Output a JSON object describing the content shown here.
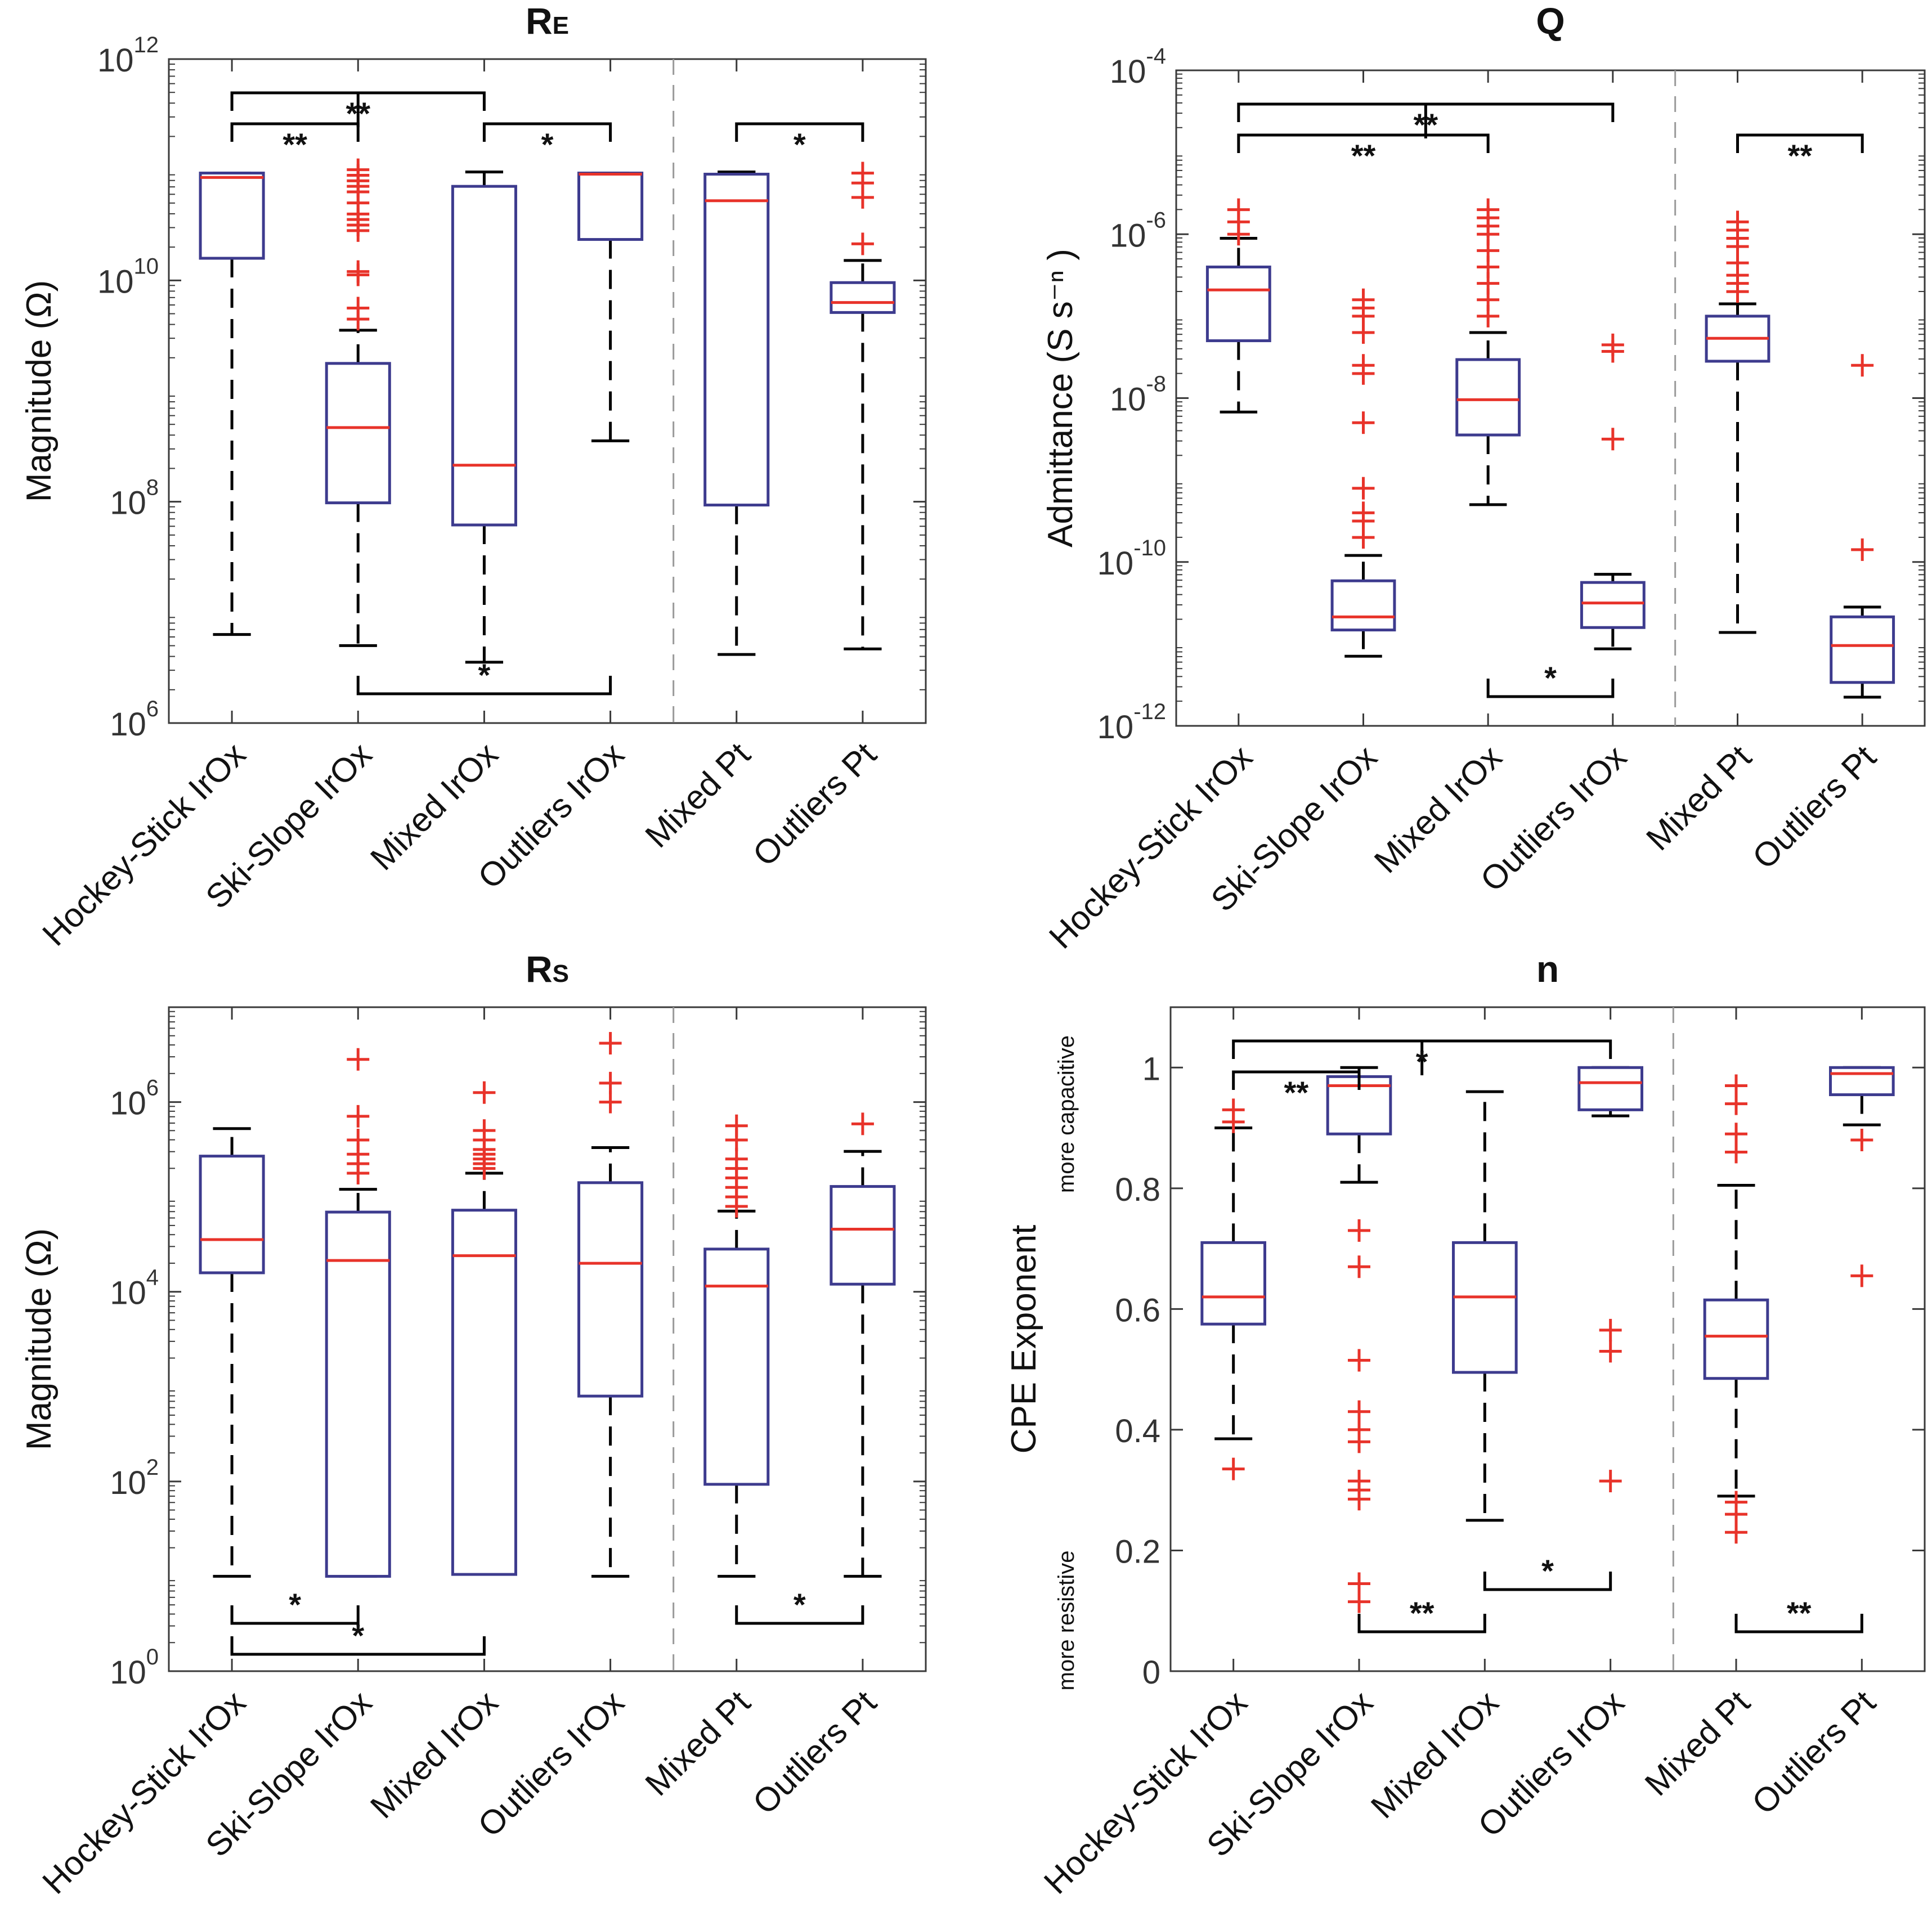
{
  "chart_data": [
    {
      "type": "box",
      "panel": "top-left",
      "title_main": "R",
      "title_sub": "E",
      "ylabel": "Magnitude (Ω)",
      "yscale": "log",
      "ylim_exp": [
        6,
        12
      ],
      "yticks": [
        {
          "base": "10",
          "exp": "6",
          "e": 6
        },
        {
          "base": "10",
          "exp": "8",
          "e": 8
        },
        {
          "base": "10",
          "exp": "10",
          "e": 10
        },
        {
          "base": "10",
          "exp": "12",
          "e": 12
        }
      ],
      "categories": [
        "Hockey-Stick IrOx",
        "Ski-Slope IrOx",
        "Mixed IrOx",
        "Outliers IrOx",
        "Mixed Pt",
        "Outliers Pt"
      ],
      "group_divider_after": 4,
      "boxes": [
        {
          "q1": 10.2,
          "median": 10.93,
          "q3": 10.97,
          "wlo": 6.8,
          "whi": 10.97,
          "outliers": []
        },
        {
          "q1": 7.99,
          "median": 8.67,
          "q3": 9.25,
          "wlo": 6.7,
          "whi": 9.55,
          "outliers": [
            9.65,
            9.75,
            10.05,
            10.08,
            10.45,
            10.5,
            10.55,
            10.6,
            10.7,
            10.8,
            10.85,
            10.9,
            10.95,
            11.0
          ]
        },
        {
          "q1": 7.79,
          "median": 8.33,
          "q3": 10.85,
          "wlo": 6.55,
          "whi": 10.98,
          "outliers": []
        },
        {
          "q1": 10.37,
          "median": 10.96,
          "q3": 10.97,
          "wlo": 8.55,
          "whi": 10.97,
          "outliers": []
        },
        {
          "q1": 7.97,
          "median": 10.72,
          "q3": 10.96,
          "wlo": 6.62,
          "whi": 10.98,
          "outliers": []
        },
        {
          "q1": 9.71,
          "median": 9.8,
          "q3": 9.98,
          "wlo": 6.67,
          "whi": 10.18,
          "outliers": [
            10.33,
            10.75,
            10.88,
            10.97
          ]
        }
      ],
      "significance": [
        {
          "i": 0,
          "j": 2,
          "label": "**",
          "position": "top",
          "level": 2
        },
        {
          "i": 0,
          "j": 1,
          "label": "**",
          "position": "top",
          "level": 1
        },
        {
          "i": 2,
          "j": 3,
          "label": "*",
          "position": "top",
          "level": 1
        },
        {
          "i": 4,
          "j": 5,
          "label": "*",
          "position": "top",
          "level": 1
        },
        {
          "i": 1,
          "j": 3,
          "label": "*",
          "position": "bottom",
          "level": 1
        }
      ]
    },
    {
      "type": "box",
      "panel": "top-right",
      "title_main": "Q",
      "title_sub": "",
      "ylabel": "Admittance (S s⁻ⁿ )",
      "yscale": "log",
      "ylim_exp": [
        -12,
        -4
      ],
      "yticks": [
        {
          "base": "10",
          "exp": "-12",
          "e": -12
        },
        {
          "base": "10",
          "exp": "-10",
          "e": -10
        },
        {
          "base": "10",
          "exp": "-8",
          "e": -8
        },
        {
          "base": "10",
          "exp": "-6",
          "e": -6
        },
        {
          "base": "10",
          "exp": "-4",
          "e": -4
        }
      ],
      "categories": [
        "Hockey-Stick IrOx",
        "Ski-Slope IrOx",
        "Mixed IrOx",
        "Outliers IrOx",
        "Mixed Pt",
        "Outliers Pt"
      ],
      "group_divider_after": 4,
      "boxes": [
        {
          "q1": -7.3,
          "median": -6.68,
          "q3": -6.4,
          "wlo": -8.17,
          "whi": -6.05,
          "outliers": [
            -6.0,
            -5.85,
            -5.7
          ]
        },
        {
          "q1": -10.83,
          "median": -10.67,
          "q3": -10.23,
          "wlo": -11.15,
          "whi": -9.92,
          "outliers": [
            -9.7,
            -9.5,
            -9.4,
            -9.1,
            -8.3,
            -7.7,
            -7.6,
            -7.2,
            -7.0,
            -6.9,
            -6.8
          ]
        },
        {
          "q1": -8.45,
          "median": -8.02,
          "q3": -7.53,
          "wlo": -9.3,
          "whi": -7.2,
          "outliers": [
            -7.0,
            -6.8,
            -6.6,
            -6.4,
            -6.2,
            -6.0,
            -5.9,
            -5.8,
            -5.7
          ]
        },
        {
          "q1": -10.8,
          "median": -10.5,
          "q3": -10.25,
          "wlo": -11.06,
          "whi": -10.15,
          "outliers": [
            -8.5,
            -7.43,
            -7.35
          ]
        },
        {
          "q1": -7.55,
          "median": -7.27,
          "q3": -7.0,
          "wlo": -10.86,
          "whi": -6.85,
          "outliers": [
            -6.7,
            -6.6,
            -6.5,
            -6.35,
            -6.15,
            -6.05,
            -5.95,
            -5.85
          ]
        },
        {
          "q1": -11.47,
          "median": -11.02,
          "q3": -10.67,
          "wlo": -11.65,
          "whi": -10.55,
          "outliers": [
            -9.85,
            -7.6
          ]
        }
      ],
      "significance": [
        {
          "i": 0,
          "j": 3,
          "label": "**",
          "position": "top",
          "level": 2
        },
        {
          "i": 0,
          "j": 2,
          "label": "**",
          "position": "top",
          "level": 1
        },
        {
          "i": 4,
          "j": 5,
          "label": "**",
          "position": "top",
          "level": 1
        },
        {
          "i": 2,
          "j": 3,
          "label": "*",
          "position": "bottom",
          "level": 1
        }
      ]
    },
    {
      "type": "box",
      "panel": "bottom-left",
      "title_main": "R",
      "title_sub": "S",
      "ylabel": "Magnitude (Ω)",
      "yscale": "log",
      "ylim_exp": [
        0,
        7
      ],
      "yticks": [
        {
          "base": "10",
          "exp": "0",
          "e": 0
        },
        {
          "base": "10",
          "exp": "2",
          "e": 2
        },
        {
          "base": "10",
          "exp": "4",
          "e": 4
        },
        {
          "base": "10",
          "exp": "6",
          "e": 6
        }
      ],
      "categories": [
        "Hockey-Stick IrOx",
        "Ski-Slope IrOx",
        "Mixed IrOx",
        "Outliers IrOx",
        "Mixed Pt",
        "Outliers Pt"
      ],
      "group_divider_after": 4,
      "boxes": [
        {
          "q1": 4.2,
          "median": 4.55,
          "q3": 5.43,
          "wlo": 1.0,
          "whi": 5.72,
          "outliers": []
        },
        {
          "q1": 1.0,
          "median": 4.33,
          "q3": 4.84,
          "wlo": 1.0,
          "whi": 5.08,
          "outliers": [
            5.25,
            5.35,
            5.45,
            5.6,
            5.85,
            6.45
          ]
        },
        {
          "q1": 1.02,
          "median": 4.38,
          "q3": 4.86,
          "wlo": 1.02,
          "whi": 5.25,
          "outliers": [
            5.3,
            5.35,
            5.4,
            5.45,
            5.5,
            5.6,
            5.7,
            6.1
          ]
        },
        {
          "q1": 2.9,
          "median": 4.3,
          "q3": 5.15,
          "wlo": 1.0,
          "whi": 5.52,
          "outliers": [
            6.0,
            6.2,
            6.62
          ]
        },
        {
          "q1": 1.97,
          "median": 4.06,
          "q3": 4.45,
          "wlo": 1.0,
          "whi": 4.85,
          "outliers": [
            4.9,
            5.0,
            5.1,
            5.2,
            5.3,
            5.4,
            5.6,
            5.75
          ]
        },
        {
          "q1": 4.08,
          "median": 4.66,
          "q3": 5.11,
          "wlo": 1.0,
          "whi": 5.48,
          "outliers": [
            5.77
          ]
        }
      ],
      "significance": [
        {
          "i": 0,
          "j": 1,
          "label": "*",
          "position": "bottom",
          "level": 1
        },
        {
          "i": 0,
          "j": 2,
          "label": "*",
          "position": "bottom",
          "level": 2
        },
        {
          "i": 4,
          "j": 5,
          "label": "*",
          "position": "bottom",
          "level": 1
        }
      ]
    },
    {
      "type": "box",
      "panel": "bottom-right",
      "title_main": "n",
      "title_sub": "",
      "ylabel": "CPE Exponent",
      "yscale": "linear",
      "ylim": [
        0,
        1.1
      ],
      "yticks": [
        {
          "label": "0",
          "v": 0
        },
        {
          "label": "0.2",
          "v": 0.2
        },
        {
          "label": "0.4",
          "v": 0.4
        },
        {
          "label": "0.6",
          "v": 0.6
        },
        {
          "label": "0.8",
          "v": 0.8
        },
        {
          "label": "1",
          "v": 1
        }
      ],
      "annot_top": "more capacitive",
      "annot_bottom": "more resistive",
      "categories": [
        "Hockey-Stick IrOx",
        "Ski-Slope IrOx",
        "Mixed IrOx",
        "Outliers IrOx",
        "Mixed Pt",
        "Outliers Pt"
      ],
      "group_divider_after": 4,
      "boxes": [
        {
          "q1": 0.575,
          "median": 0.62,
          "q3": 0.71,
          "wlo": 0.385,
          "whi": 0.9,
          "outliers": [
            0.335,
            0.91,
            0.93
          ]
        },
        {
          "q1": 0.89,
          "median": 0.97,
          "q3": 0.985,
          "wlo": 0.81,
          "whi": 1.0,
          "outliers": [
            0.115,
            0.145,
            0.285,
            0.3,
            0.315,
            0.38,
            0.4,
            0.43,
            0.515,
            0.67,
            0.73
          ]
        },
        {
          "q1": 0.495,
          "median": 0.62,
          "q3": 0.71,
          "wlo": 0.25,
          "whi": 0.96,
          "outliers": []
        },
        {
          "q1": 0.93,
          "median": 0.975,
          "q3": 1.0,
          "wlo": 0.92,
          "whi": 1.0,
          "outliers": [
            0.315,
            0.53,
            0.565
          ]
        },
        {
          "q1": 0.485,
          "median": 0.555,
          "q3": 0.615,
          "wlo": 0.29,
          "whi": 0.805,
          "outliers": [
            0.23,
            0.26,
            0.28,
            0.86,
            0.89,
            0.94,
            0.97
          ]
        },
        {
          "q1": 0.955,
          "median": 0.99,
          "q3": 1.0,
          "wlo": 0.905,
          "whi": 1.0,
          "outliers": [
            0.655,
            0.88
          ]
        }
      ],
      "significance": [
        {
          "i": 0,
          "j": 3,
          "label": "*",
          "position": "top",
          "level": 2
        },
        {
          "i": 0,
          "j": 1,
          "label": "**",
          "position": "top",
          "level": 1
        },
        {
          "i": 1,
          "j": 2,
          "label": "**",
          "position": "bottom",
          "level": 1
        },
        {
          "i": 2,
          "j": 3,
          "label": "*",
          "position": "bottom",
          "level": 2
        },
        {
          "i": 4,
          "j": 5,
          "label": "**",
          "position": "bottom",
          "level": 1
        }
      ]
    }
  ],
  "colors": {
    "box": "#3d3b8e",
    "median": "#e8332a",
    "outlier": "#e8332a",
    "whisker": "#000000",
    "axis": "#3a3a3a",
    "divider": "#9a9a9a"
  }
}
